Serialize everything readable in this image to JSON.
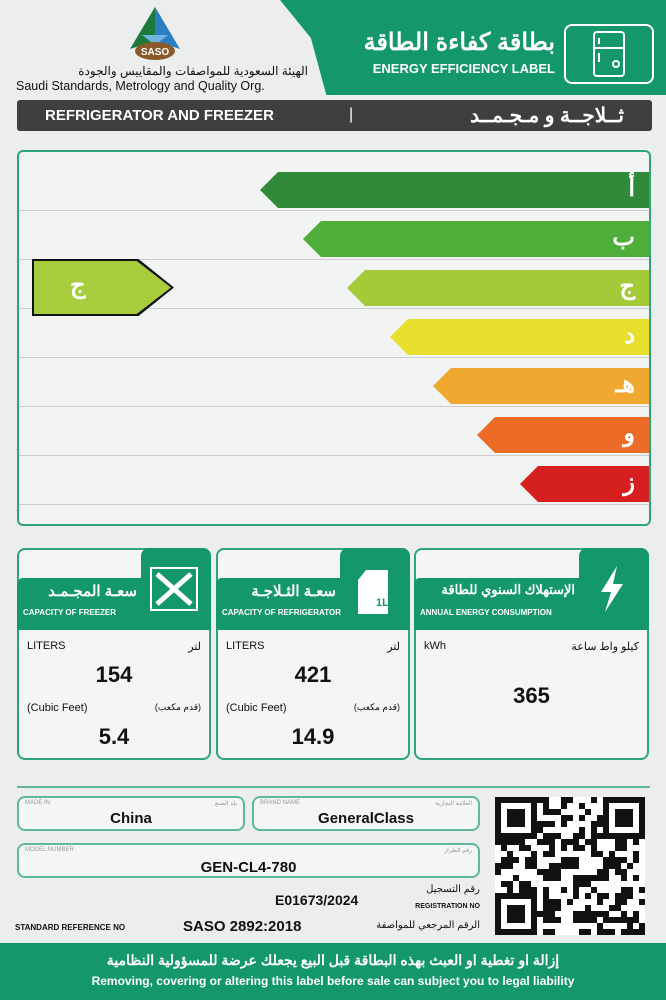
{
  "header": {
    "logo_text": "SASO",
    "org_ar": "الهيئة السعودية للمواصفات والمقاييس والجودة",
    "org_en": "Saudi Standards, Metrology and Quality Org.",
    "title_ar": "بطاقة كفاءة الطاقة",
    "title_en": "ENERGY EFFICIENCY LABEL",
    "icon": "fridge-icon"
  },
  "category": {
    "en": "REFRIGERATOR AND FREEZER",
    "separator": "|",
    "ar": "ثــلاجــة و مـجـمــد"
  },
  "scale": {
    "classes": [
      {
        "label": "أ",
        "color": "#2f8a3a"
      },
      {
        "label": "ب",
        "color": "#4fae3a"
      },
      {
        "label": "ج",
        "color": "#a4ca3a"
      },
      {
        "label": "د",
        "color": "#e6df2e"
      },
      {
        "label": "هـ",
        "color": "#f0a830"
      },
      {
        "label": "و",
        "color": "#ec6b26"
      },
      {
        "label": "ز",
        "color": "#d6201f"
      }
    ],
    "rating": "ج",
    "rating_index": 2
  },
  "cards": [
    {
      "title_ar": "سعـة المجـمـد",
      "title_en": "CAPACITY OF FREEZER",
      "icon": "expand-arrows-icon",
      "unit_en": "LITERS",
      "unit_ar": "لتر",
      "value": "154",
      "unit2_en": "(Cubic Feet)",
      "unit2_ar": "(قدم مكعب)",
      "value2": "5.4"
    },
    {
      "title_ar": "سعـة الثـلاجـة",
      "title_en": "CAPACITY OF REFRIGERATOR",
      "icon": "milk-carton-icon",
      "icon_text": "1L",
      "unit_en": "LITERS",
      "unit_ar": "لتر",
      "value": "421",
      "unit2_en": "(Cubic Feet)",
      "unit2_ar": "(قدم مكعب)",
      "value2": "14.9"
    },
    {
      "title_ar": "الإستهلاك السنوي للطاقة",
      "title_en": "ANNUAL ENERGY CONSUMPTION",
      "icon": "lightning-icon",
      "unit_en": "kWh",
      "unit_ar": "كيلو واط ساعة",
      "value": "365"
    }
  ],
  "details": {
    "made_in_label_en": "MADE IN",
    "made_in_label_ar": "بلد الصنع",
    "made_in": "China",
    "brand_label_en": "BRAND NAME",
    "brand_label_ar": "العلامة التجارية",
    "brand": "GeneralClass",
    "model_label_en": "MODEL NUMBER",
    "model_label_ar": "رقم الطراز",
    "model": "GEN-CL4-780",
    "registration_label_ar": "رقم التسجيل",
    "registration_label_en": "REGISTRATION NO",
    "registration": "E01673/2024",
    "standard_label_en": "STANDARD REFERENCE NO",
    "standard": "SASO 2892:2018",
    "standard_label_ar": "الرقم المرجعي للمواصفة"
  },
  "footer": {
    "ar": "إزالة او تغطية او العبث بهذه البطاقة قبل البيع يجعلك عرضة للمسؤولية النظامية",
    "en": "Removing, covering or altering this label before sale can subject you to legal liability"
  }
}
